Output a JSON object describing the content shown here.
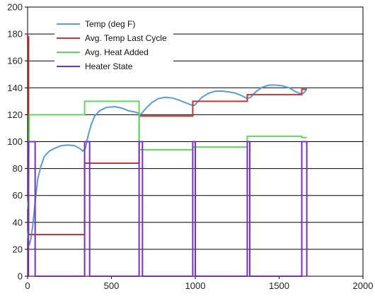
{
  "chart_data": {
    "type": "line",
    "xlim": [
      0,
      2000
    ],
    "ylim": [
      0,
      200
    ],
    "x_ticks": [
      "0",
      "500",
      "1000",
      "1500",
      "2000"
    ],
    "y_ticks": [
      "0",
      "20",
      "40",
      "60",
      "80",
      "100",
      "120",
      "140",
      "160",
      "180",
      "200"
    ],
    "grid": "horizontal",
    "legend_position": "top-left",
    "series": [
      {
        "name": "Temp (deg F)",
        "color": "#5b9bd5",
        "points": [
          [
            0,
            34
          ],
          [
            5,
            26
          ],
          [
            12,
            24
          ],
          [
            20,
            28
          ],
          [
            30,
            37
          ],
          [
            45,
            55
          ],
          [
            60,
            72
          ],
          [
            80,
            82
          ],
          [
            100,
            89
          ],
          [
            130,
            93
          ],
          [
            160,
            95
          ],
          [
            200,
            97
          ],
          [
            240,
            97.5
          ],
          [
            280,
            97
          ],
          [
            310,
            95
          ],
          [
            330,
            93
          ],
          [
            345,
            95
          ],
          [
            360,
            104
          ],
          [
            380,
            113
          ],
          [
            400,
            119
          ],
          [
            430,
            123
          ],
          [
            470,
            125.5
          ],
          [
            520,
            126
          ],
          [
            560,
            125
          ],
          [
            600,
            123
          ],
          [
            640,
            122
          ],
          [
            665,
            121
          ],
          [
            670,
            120
          ],
          [
            680,
            121
          ],
          [
            700,
            124
          ],
          [
            740,
            129
          ],
          [
            780,
            132
          ],
          [
            820,
            133
          ],
          [
            860,
            132.5
          ],
          [
            900,
            131
          ],
          [
            940,
            129
          ],
          [
            980,
            127
          ],
          [
            995,
            127
          ],
          [
            1010,
            129
          ],
          [
            1040,
            133
          ],
          [
            1080,
            136
          ],
          [
            1120,
            137.5
          ],
          [
            1160,
            137.5
          ],
          [
            1200,
            137
          ],
          [
            1240,
            136
          ],
          [
            1280,
            134
          ],
          [
            1310,
            132
          ],
          [
            1330,
            133
          ],
          [
            1360,
            137
          ],
          [
            1400,
            140.5
          ],
          [
            1440,
            142
          ],
          [
            1480,
            142
          ],
          [
            1520,
            141.5
          ],
          [
            1560,
            140
          ],
          [
            1600,
            137
          ],
          [
            1630,
            135.5
          ],
          [
            1645,
            136
          ],
          [
            1665,
            139
          ]
        ]
      },
      {
        "name": "Avg. Temp Last Cycle",
        "color": "#c0383a",
        "points": [
          [
            0,
            180
          ],
          [
            0,
            178
          ],
          [
            6,
            178
          ],
          [
            6,
            31
          ],
          [
            340,
            31
          ],
          [
            340,
            84
          ],
          [
            665,
            84
          ],
          [
            665,
            119
          ],
          [
            985,
            119
          ],
          [
            985,
            130
          ],
          [
            1310,
            130
          ],
          [
            1310,
            135
          ],
          [
            1635,
            135
          ],
          [
            1635,
            139
          ],
          [
            1665,
            139
          ]
        ]
      },
      {
        "name": "Avg. Heat Added",
        "color": "#5fd65f",
        "points": [
          [
            0,
            50
          ],
          [
            6,
            60
          ],
          [
            10,
            120
          ],
          [
            340,
            120
          ],
          [
            340,
            130
          ],
          [
            665,
            130
          ],
          [
            665,
            94
          ],
          [
            985,
            94
          ],
          [
            985,
            96
          ],
          [
            1310,
            96
          ],
          [
            1310,
            104
          ],
          [
            1635,
            104
          ],
          [
            1635,
            103
          ],
          [
            1665,
            103
          ]
        ]
      },
      {
        "name": "Heater State",
        "color": "#7a2fc4",
        "points": [
          [
            0,
            0
          ],
          [
            5,
            0
          ],
          [
            5,
            100
          ],
          [
            45,
            100
          ],
          [
            45,
            0
          ],
          [
            340,
            0
          ],
          [
            340,
            100
          ],
          [
            370,
            100
          ],
          [
            370,
            0
          ],
          [
            665,
            0
          ],
          [
            665,
            100
          ],
          [
            685,
            100
          ],
          [
            685,
            0
          ],
          [
            985,
            0
          ],
          [
            985,
            100
          ],
          [
            1000,
            100
          ],
          [
            1000,
            0
          ],
          [
            1310,
            0
          ],
          [
            1310,
            100
          ],
          [
            1325,
            100
          ],
          [
            1325,
            0
          ],
          [
            1635,
            0
          ],
          [
            1635,
            100
          ],
          [
            1665,
            100
          ],
          [
            1665,
            0
          ]
        ]
      }
    ]
  }
}
